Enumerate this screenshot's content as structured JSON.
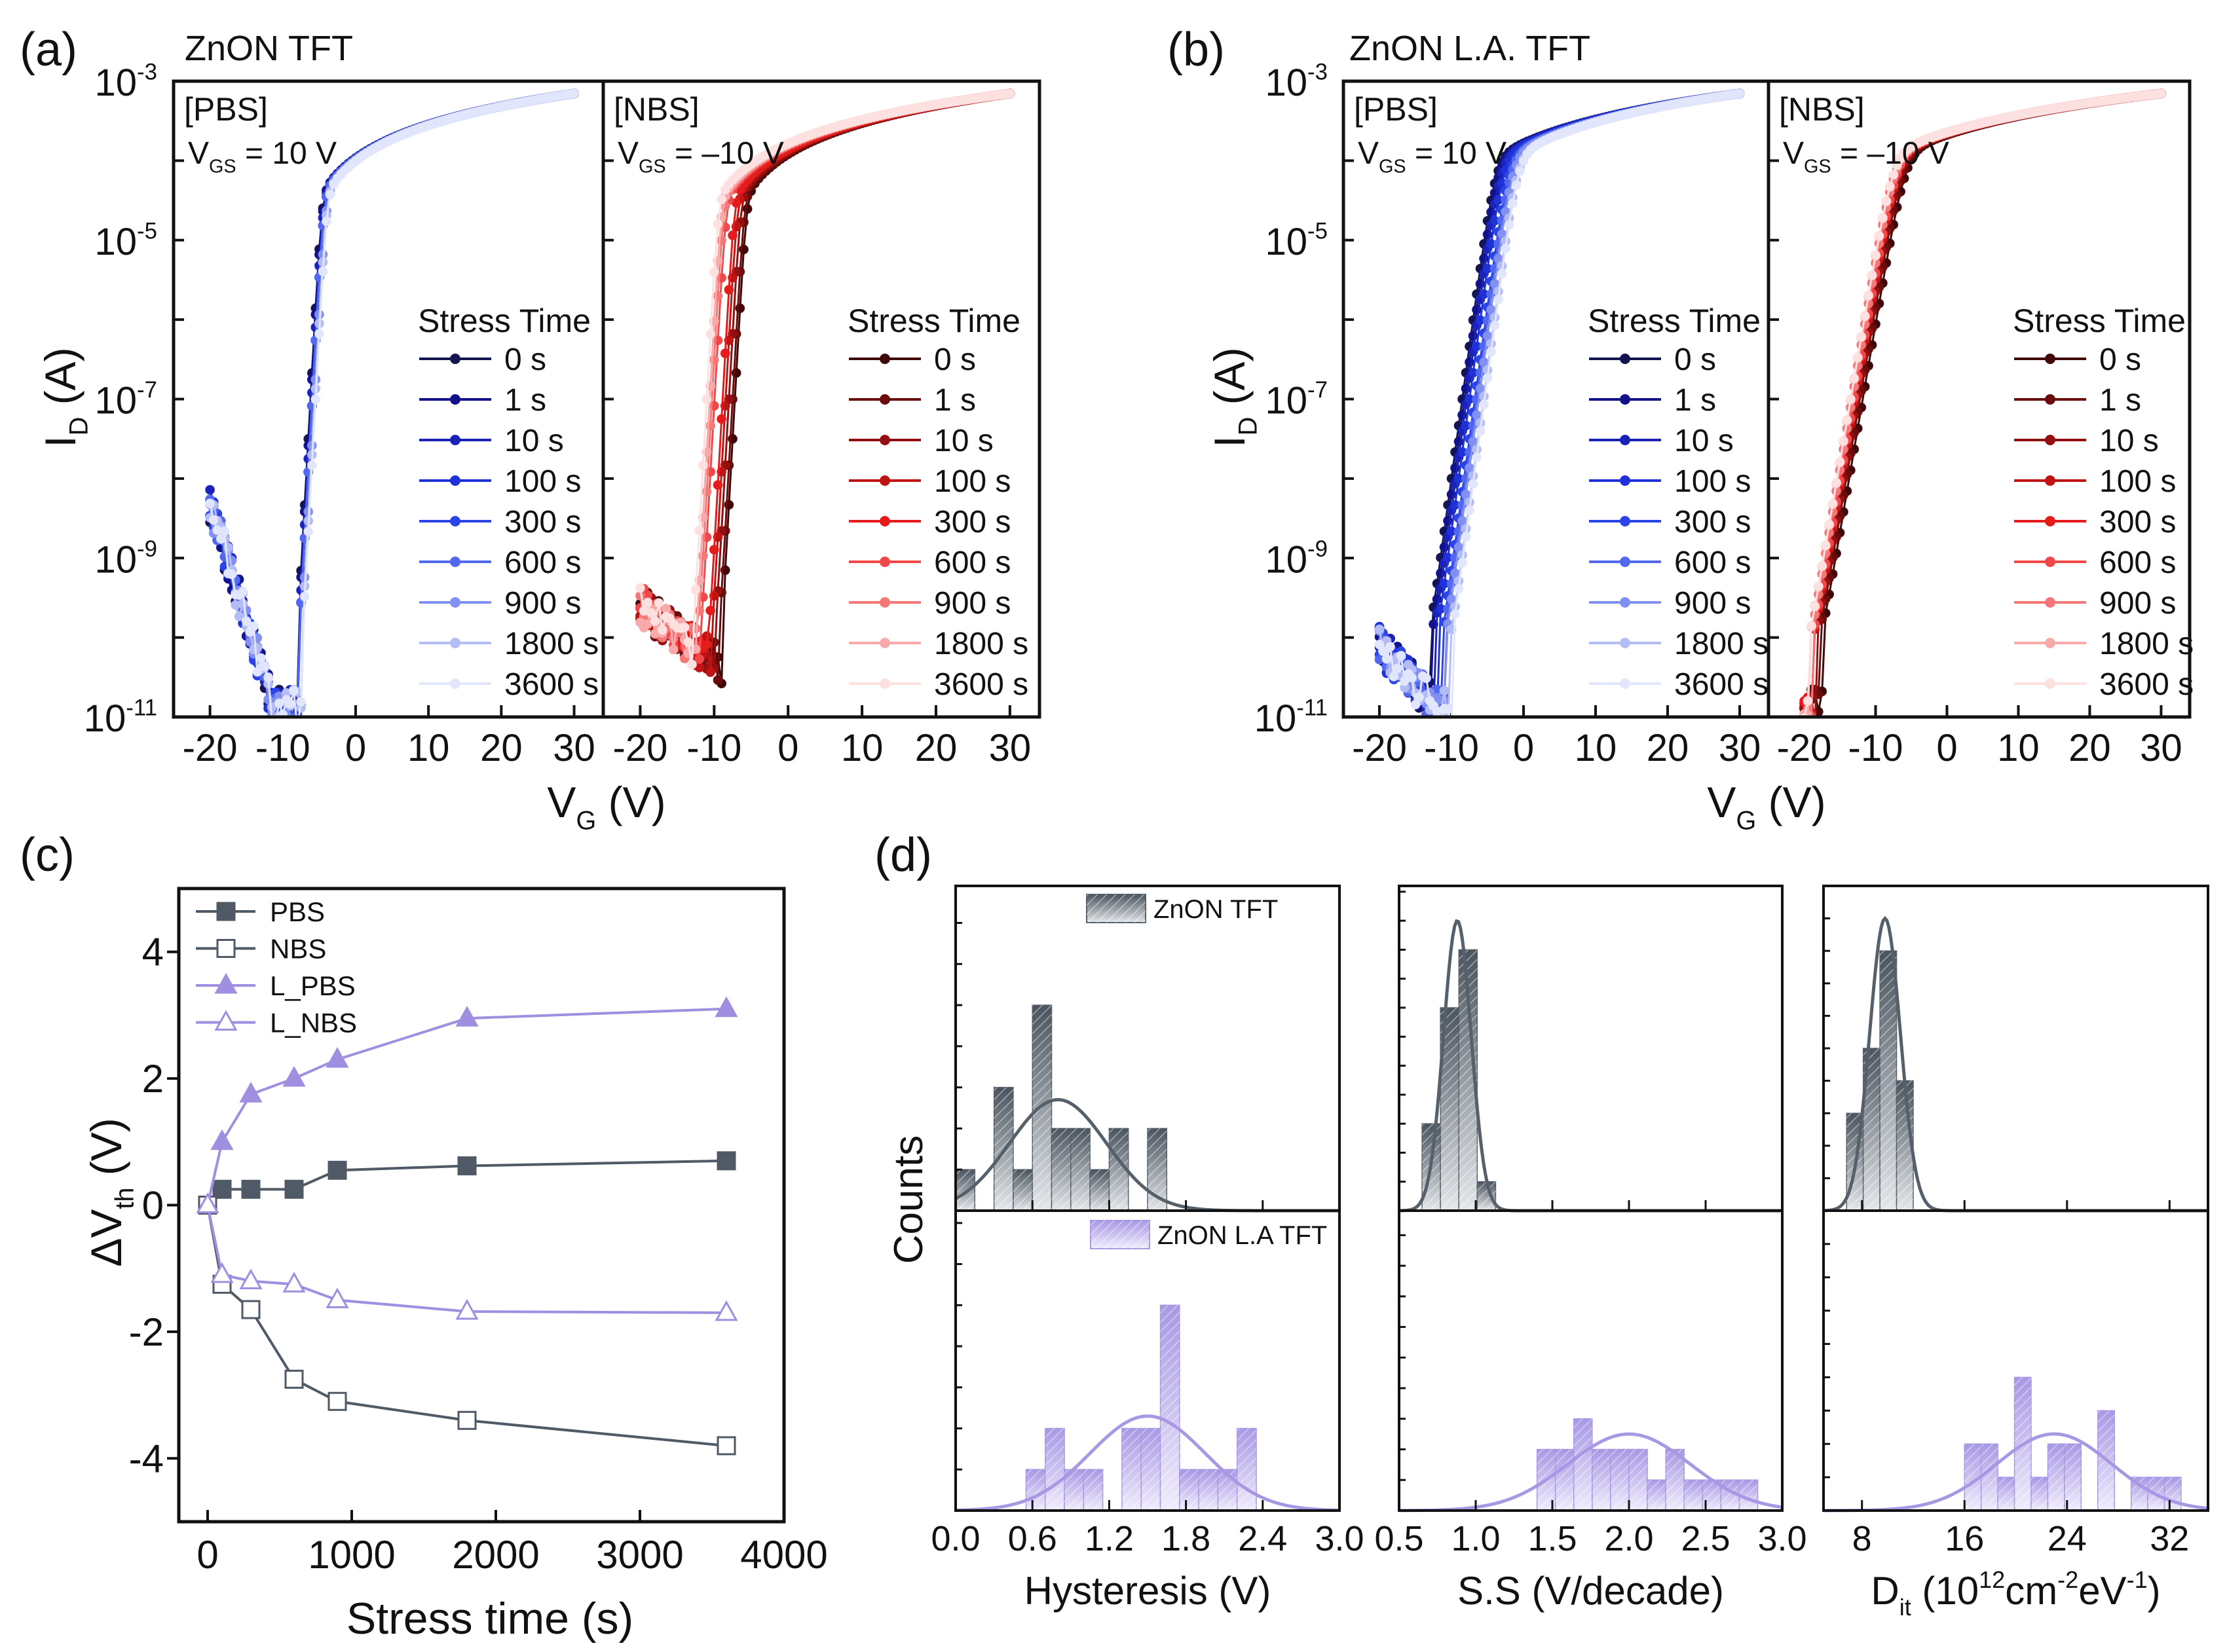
{
  "chart_data": [
    {
      "id": "a",
      "type": "line",
      "panel_label": "(a)",
      "title": "ZnON TFT",
      "xlabel": "V_{G} (V)",
      "ylabel": "I_{D} (A)",
      "yscale": "log",
      "ylim_log10": [
        -11,
        -3
      ],
      "ytick_labels": [
        "10^{-3}",
        "10^{-5}",
        "10^{-7}",
        "10^{-9}",
        "10^{-11}"
      ],
      "xlim": [
        -25,
        34
      ],
      "xticks": [
        -20,
        -10,
        0,
        10,
        20,
        30
      ],
      "legend_title": "Stress Time",
      "stress_times": [
        "0 s",
        "1 s",
        "10 s",
        "100 s",
        "300 s",
        "600 s",
        "900 s",
        "1800 s",
        "3600 s"
      ],
      "subplots": [
        {
          "tag": "[PBS]",
          "condition": "V_{GS} = 10 V",
          "colors": [
            "#141450",
            "#12128a",
            "#1a22b8",
            "#1e32d8",
            "#2a44e8",
            "#5268ee",
            "#8290f2",
            "#b4bcf6",
            "#e2e6fc"
          ],
          "onset_V": -8,
          "ss_V_per_dec": 0.6,
          "ion_at_30V_A": 0.0007,
          "leak_log10_at_-20V": -8.3,
          "leak_slope_dec_per_V": -0.3,
          "vth_shift_V": [
            0,
            0.05,
            0.15,
            0.25,
            0.25,
            0.25,
            0.55,
            0.62,
            0.7
          ]
        },
        {
          "tag": "[NBS]",
          "condition": "V_{GS} = –10 V",
          "colors": [
            "#400808",
            "#6a0c0c",
            "#921010",
            "#c01414",
            "#e41c1c",
            "#f04848",
            "#f47878",
            "#f8aaaa",
            "#fde0e0"
          ],
          "onset_V": -9,
          "ss_V_per_dec": 0.6,
          "ion_at_30V_A": 0.0007,
          "leak_log10_at_-20V": -9.6,
          "leak_slope_dec_per_V": -0.07,
          "vth_shift_V": [
            0,
            -0.3,
            -0.8,
            -1.25,
            -1.65,
            -2.75,
            -3.1,
            -3.4,
            -3.8
          ]
        }
      ]
    },
    {
      "id": "b",
      "type": "line",
      "panel_label": "(b)",
      "title": "ZnON L.A. TFT",
      "xlabel": "V_{G} (V)",
      "ylabel": "I_{D} (A)",
      "yscale": "log",
      "ylim_log10": [
        -11,
        -3
      ],
      "ytick_labels": [
        "10^{-3}",
        "10^{-5}",
        "10^{-7}",
        "10^{-9}",
        "10^{-11}"
      ],
      "xlim": [
        -25,
        34
      ],
      "xticks": [
        -20,
        -10,
        0,
        10,
        20,
        30
      ],
      "legend_title": "Stress Time",
      "stress_times": [
        "0 s",
        "1 s",
        "10 s",
        "100 s",
        "300 s",
        "600 s",
        "900 s",
        "1800 s",
        "3600 s"
      ],
      "subplots": [
        {
          "tag": "[PBS]",
          "condition": "V_{GS} = 10 V",
          "colors": [
            "#141450",
            "#12128a",
            "#1a22b8",
            "#1e32d8",
            "#2a44e8",
            "#5268ee",
            "#8290f2",
            "#b4bcf6",
            "#e2e6fc"
          ],
          "onset_V": -13,
          "ss_V_per_dec": 1.5,
          "ion_at_30V_A": 0.0007,
          "leak_log10_at_-20V": -10.1,
          "leak_slope_dec_per_V": -0.1,
          "vth_shift_V": [
            0,
            0.3,
            0.6,
            1.0,
            1.75,
            2.0,
            2.3,
            2.95,
            3.1
          ]
        },
        {
          "tag": "[NBS]",
          "condition": "V_{GS} = –10 V",
          "colors": [
            "#400808",
            "#6a0c0c",
            "#921010",
            "#c01414",
            "#e41c1c",
            "#f04848",
            "#f47878",
            "#f8aaaa",
            "#fde0e0"
          ],
          "onset_V": -17.5,
          "ss_V_per_dec": 1.9,
          "ion_at_30V_A": 0.0007,
          "leak_log10_at_-20V": -11.5,
          "leak_slope_dec_per_V": 0,
          "vth_shift_V": [
            0,
            -0.4,
            -0.8,
            -1.1,
            -1.2,
            -1.25,
            -1.5,
            -1.68,
            -1.7
          ]
        }
      ]
    },
    {
      "id": "c",
      "type": "line",
      "panel_label": "(c)",
      "xlabel": "Stress time (s)",
      "ylabel": "ΔV_{th} (V)",
      "xlim": [
        -200,
        4000
      ],
      "ylim": [
        -5,
        5
      ],
      "xticks": [
        0,
        1000,
        2000,
        3000,
        4000
      ],
      "yticks": [
        4,
        2,
        0,
        -2,
        -4
      ],
      "legend_position": "top-left",
      "x": [
        0,
        100,
        300,
        600,
        900,
        1800,
        3600
      ],
      "series": [
        {
          "name": "PBS",
          "marker": "filled-square",
          "color": "#4f5a66",
          "values": [
            0,
            0.25,
            0.25,
            0.25,
            0.55,
            0.62,
            0.7
          ]
        },
        {
          "name": "NBS",
          "marker": "open-square",
          "color": "#4f5a66",
          "values": [
            0,
            -1.25,
            -1.65,
            -2.75,
            -3.1,
            -3.4,
            -3.8
          ]
        },
        {
          "name": "L_PBS",
          "marker": "filled-triangle",
          "color": "#a08ee0",
          "values": [
            0,
            1.0,
            1.75,
            2.0,
            2.3,
            2.95,
            3.1
          ]
        },
        {
          "name": "L_NBS",
          "marker": "open-triangle",
          "color": "#a08ee0",
          "values": [
            0,
            -1.1,
            -1.2,
            -1.25,
            -1.5,
            -1.68,
            -1.7
          ]
        }
      ]
    },
    {
      "id": "d",
      "type": "bar",
      "panel_label": "(d)",
      "ylabel": "Counts",
      "legend": [
        "ZnON TFT",
        "ZnON L.A TFT"
      ],
      "colors": {
        "ZnON TFT": "#56606a",
        "ZnON L.A TFT": "#a898e4"
      },
      "histograms": [
        {
          "xlabel": "Hysteresis (V)",
          "xlim": [
            0,
            3
          ],
          "xticks": [
            0.0,
            0.6,
            1.2,
            1.8,
            2.4,
            3.0
          ],
          "xtick_labels": [
            "0.0",
            "0.6",
            "1.2",
            "1.8",
            "2.4",
            "3.0"
          ],
          "top": {
            "series": "ZnON TFT",
            "ymax": 7.9,
            "bin_start": 0,
            "bin_width": 0.15,
            "counts": [
              1,
              0,
              3,
              1,
              5,
              2,
              2,
              1,
              2,
              0,
              2
            ],
            "fit": {
              "mean": 0.8,
              "sd": 0.38,
              "peak": 2.7
            }
          },
          "bottom": {
            "series": "ZnON L.A TFT",
            "ymax": 7.3,
            "bin_start": 0.55,
            "bin_width": 0.15,
            "counts": [
              1,
              2,
              1,
              1,
              0,
              2,
              2,
              5,
              1,
              1,
              1,
              2
            ],
            "fit": {
              "mean": 1.5,
              "sd": 0.45,
              "peak": 2.3
            }
          }
        },
        {
          "xlabel": "S.S (V/decade)",
          "xlim": [
            0.5,
            3.0
          ],
          "xticks": [
            0.5,
            1.0,
            1.5,
            2.0,
            2.5,
            3.0
          ],
          "xtick_labels": [
            "0.5",
            "1.0",
            "1.5",
            "2.0",
            "2.5",
            "3.0"
          ],
          "top": {
            "series": "ZnON TFT",
            "ymax": 11.2,
            "bin_start": 0.65,
            "bin_width": 0.12,
            "counts": [
              3,
              7,
              9,
              1
            ],
            "fit": {
              "mean": 0.88,
              "sd": 0.09,
              "peak": 10
            }
          },
          "bottom": {
            "series": "ZnON L.A TFT",
            "ymax": 9.8,
            "bin_start": 1.4,
            "bin_width": 0.12,
            "counts": [
              2,
              2,
              3,
              2,
              2,
              2,
              1,
              2,
              1,
              1,
              1,
              1
            ],
            "fit": {
              "mean": 2.0,
              "sd": 0.4,
              "peak": 2.5
            }
          }
        },
        {
          "xlabel": "D_{it} (10^{12}cm^{-2}eV^{-1})",
          "xlim": [
            5,
            35
          ],
          "xticks": [
            8,
            16,
            24,
            32
          ],
          "xtick_labels": [
            "8",
            "16",
            "24",
            "32"
          ],
          "top": {
            "series": "ZnON TFT",
            "ymax": 10,
            "bin_start": 6.8,
            "bin_width": 1.3,
            "counts": [
              3,
              5,
              8,
              4
            ],
            "fit": {
              "mean": 9.8,
              "sd": 1.2,
              "peak": 9
            }
          },
          "bottom": {
            "series": "ZnON L.A TFT",
            "ymax": 9,
            "bin_start": 16,
            "bin_width": 1.3,
            "counts": [
              2,
              2,
              1,
              4,
              1,
              2,
              2,
              0,
              3,
              0,
              1,
              1,
              1
            ],
            "fit": {
              "mean": 23,
              "sd": 4.5,
              "peak": 2.3
            }
          }
        }
      ]
    }
  ]
}
